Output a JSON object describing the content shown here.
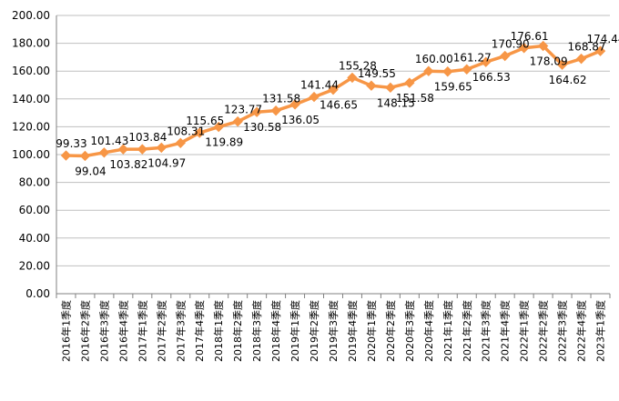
{
  "chart_data": {
    "type": "line",
    "title": "",
    "xlabel": "",
    "ylabel": "",
    "ylim": [
      0,
      200
    ],
    "ytick_step": 20,
    "ytick_labels": [
      "0.00",
      "20.00",
      "40.00",
      "60.00",
      "80.00",
      "100.00",
      "120.00",
      "140.00",
      "160.00",
      "180.00",
      "200.00"
    ],
    "grid": true,
    "legend": "none",
    "color": "#f79646",
    "categories": [
      "2016年1季度",
      "2016年2季度",
      "2016年3季度",
      "2016年4季度",
      "2017年1季度",
      "2017年2季度",
      "2017年3季度",
      "2017年4季度",
      "2018年1季度",
      "2018年2季度",
      "2018年3季度",
      "2018年4季度",
      "2019年1季度",
      "2019年2季度",
      "2019年3季度",
      "2019年4季度",
      "2020年1季度",
      "2020年2季度",
      "2020年3季度",
      "2020年4季度",
      "2021年1季度",
      "2021年2季度",
      "2021年3季度",
      "2021年4季度",
      "2022年1季度",
      "2022年2季度",
      "2022年3季度",
      "2022年4季度",
      "2023年1季度"
    ],
    "values": [
      99.33,
      99.04,
      101.43,
      103.82,
      103.84,
      104.97,
      108.31,
      115.65,
      119.89,
      123.77,
      130.58,
      131.58,
      136.05,
      141.44,
      146.65,
      155.28,
      149.55,
      148.15,
      151.58,
      160.0,
      159.65,
      161.27,
      166.53,
      170.9,
      176.61,
      178.09,
      164.62,
      168.87,
      174.44
    ],
    "value_labels": [
      "99.33",
      "99.04",
      "101.43",
      "103.82",
      "103.84",
      "104.97",
      "108.31",
      "115.65",
      "119.89",
      "123.77",
      "130.58",
      "131.58",
      "136.05",
      "141.44",
      "146.65",
      "155.28",
      "149.55",
      "148.15",
      "151.58",
      "160.00",
      "159.65",
      "161.27",
      "166.53",
      "170.90",
      "176.61",
      "178.09",
      "164.62",
      "168.87",
      "174.44"
    ]
  }
}
